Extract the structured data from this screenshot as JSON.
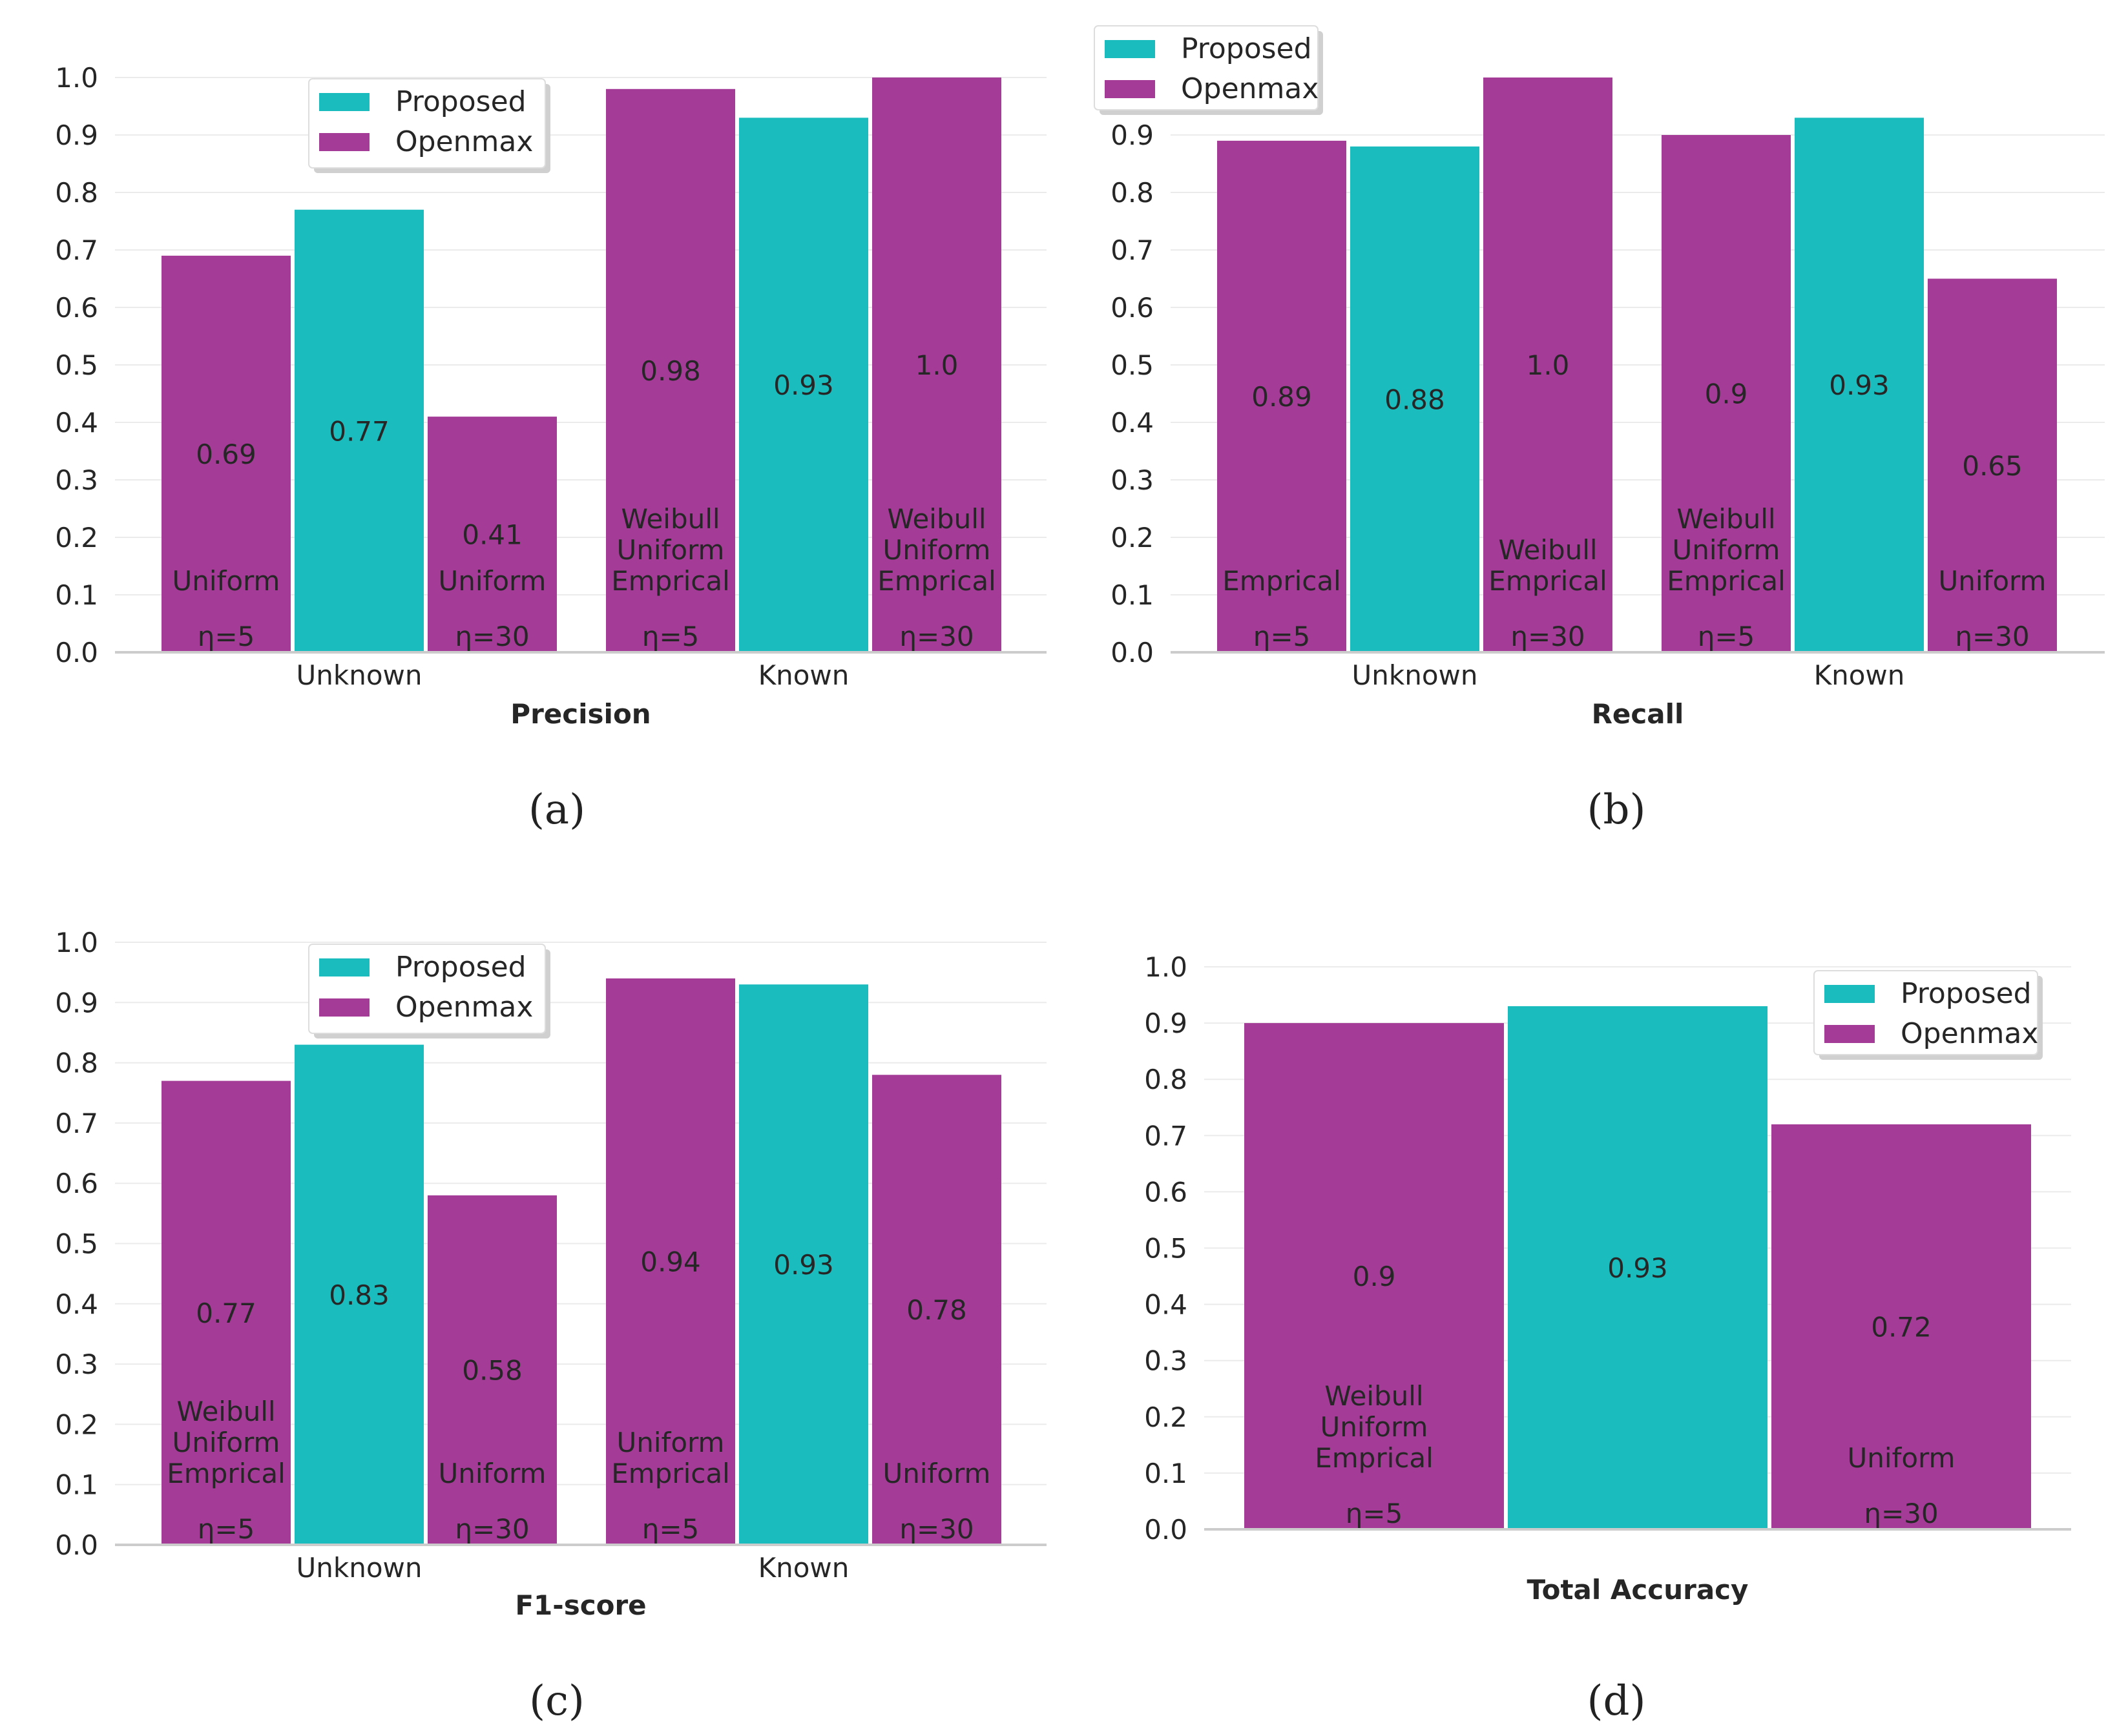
{
  "colors": {
    "proposed": "#1ABCBE",
    "openmax": "#A43C97"
  },
  "chart_data": [
    {
      "type": "bar",
      "panel": "(a)",
      "xlabel": "Precision",
      "ylabel": "",
      "ylim": [
        0,
        1.0
      ],
      "yticks": [
        "0.0",
        "0.1",
        "0.2",
        "0.3",
        "0.4",
        "0.5",
        "0.6",
        "0.7",
        "0.8",
        "0.9",
        "1.0"
      ],
      "legend": {
        "placement": "top-center",
        "entries": [
          "Proposed",
          "Openmax"
        ]
      },
      "grid": true,
      "groups": [
        {
          "category": "Unknown",
          "bars": [
            {
              "series": "Openmax",
              "value": 0.69,
              "label": "0.69",
              "note": [
                "Uniform"
              ],
              "eta": "η=5"
            },
            {
              "series": "Proposed",
              "value": 0.77,
              "label": "0.77",
              "note": [],
              "eta": ""
            },
            {
              "series": "Openmax",
              "value": 0.41,
              "label": "0.41",
              "note": [
                "Uniform"
              ],
              "eta": "η=30"
            }
          ]
        },
        {
          "category": "Known",
          "bars": [
            {
              "series": "Openmax",
              "value": 0.98,
              "label": "0.98",
              "note": [
                "Weibull",
                "Uniform",
                "Emprical"
              ],
              "eta": "η=5"
            },
            {
              "series": "Proposed",
              "value": 0.93,
              "label": "0.93",
              "note": [],
              "eta": ""
            },
            {
              "series": "Openmax",
              "value": 1.0,
              "label": "1.0",
              "note": [
                "Weibull",
                "Uniform",
                "Emprical"
              ],
              "eta": "η=30"
            }
          ]
        }
      ]
    },
    {
      "type": "bar",
      "panel": "(b)",
      "xlabel": "Recall",
      "ylabel": "",
      "ylim": [
        0,
        1.0
      ],
      "yticks": [
        "0.0",
        "0.1",
        "0.2",
        "0.3",
        "0.4",
        "0.5",
        "0.6",
        "0.7",
        "0.8",
        "0.9"
      ],
      "legend": {
        "placement": "top-left",
        "entries": [
          "Proposed",
          "Openmax"
        ]
      },
      "grid": true,
      "groups": [
        {
          "category": "Unknown",
          "bars": [
            {
              "series": "Openmax",
              "value": 0.89,
              "label": "0.89",
              "note": [
                "Emprical"
              ],
              "eta": "η=5"
            },
            {
              "series": "Proposed",
              "value": 0.88,
              "label": "0.88",
              "note": [],
              "eta": ""
            },
            {
              "series": "Openmax",
              "value": 1.0,
              "label": "1.0",
              "note": [
                "Weibull",
                "Emprical"
              ],
              "eta": "η=30"
            }
          ]
        },
        {
          "category": "Known",
          "bars": [
            {
              "series": "Openmax",
              "value": 0.9,
              "label": "0.9",
              "note": [
                "Weibull",
                "Uniform",
                "Emprical"
              ],
              "eta": "η=5"
            },
            {
              "series": "Proposed",
              "value": 0.93,
              "label": "0.93",
              "note": [],
              "eta": ""
            },
            {
              "series": "Openmax",
              "value": 0.65,
              "label": "0.65",
              "note": [
                "Uniform"
              ],
              "eta": "η=30"
            }
          ]
        }
      ]
    },
    {
      "type": "bar",
      "panel": "(c)",
      "xlabel": "F1-score",
      "ylabel": "",
      "ylim": [
        0,
        1.0
      ],
      "yticks": [
        "0.0",
        "0.1",
        "0.2",
        "0.3",
        "0.4",
        "0.5",
        "0.6",
        "0.7",
        "0.8",
        "0.9",
        "1.0"
      ],
      "legend": {
        "placement": "top-center",
        "entries": [
          "Proposed",
          "Openmax"
        ]
      },
      "grid": true,
      "groups": [
        {
          "category": "Unknown",
          "bars": [
            {
              "series": "Openmax",
              "value": 0.77,
              "label": "0.77",
              "note": [
                "Weibull",
                "Uniform",
                "Emprical"
              ],
              "eta": "η=5"
            },
            {
              "series": "Proposed",
              "value": 0.83,
              "label": "0.83",
              "note": [],
              "eta": ""
            },
            {
              "series": "Openmax",
              "value": 0.58,
              "label": "0.58",
              "note": [
                "Uniform"
              ],
              "eta": "η=30"
            }
          ]
        },
        {
          "category": "Known",
          "bars": [
            {
              "series": "Openmax",
              "value": 0.94,
              "label": "0.94",
              "note": [
                "Uniform",
                "Emprical"
              ],
              "eta": "η=5"
            },
            {
              "series": "Proposed",
              "value": 0.93,
              "label": "0.93",
              "note": [],
              "eta": ""
            },
            {
              "series": "Openmax",
              "value": 0.78,
              "label": "0.78",
              "note": [
                "Uniform"
              ],
              "eta": "η=30"
            }
          ]
        }
      ]
    },
    {
      "type": "bar",
      "panel": "(d)",
      "xlabel": "Total Accuracy",
      "ylabel": "",
      "ylim": [
        0,
        1.0
      ],
      "yticks": [
        "0.0",
        "0.1",
        "0.2",
        "0.3",
        "0.4",
        "0.5",
        "0.6",
        "0.7",
        "0.8",
        "0.9",
        "1.0"
      ],
      "legend": {
        "placement": "top-right",
        "entries": [
          "Proposed",
          "Openmax"
        ]
      },
      "grid": true,
      "groups": [
        {
          "category": "",
          "bars": [
            {
              "series": "Openmax",
              "value": 0.9,
              "label": "0.9",
              "note": [
                "Weibull",
                "Uniform",
                "Emprical"
              ],
              "eta": "η=5"
            },
            {
              "series": "Proposed",
              "value": 0.93,
              "label": "0.93",
              "note": [],
              "eta": ""
            },
            {
              "series": "Openmax",
              "value": 0.72,
              "label": "0.72",
              "note": [
                "Uniform"
              ],
              "eta": "η=30"
            }
          ]
        }
      ]
    }
  ]
}
